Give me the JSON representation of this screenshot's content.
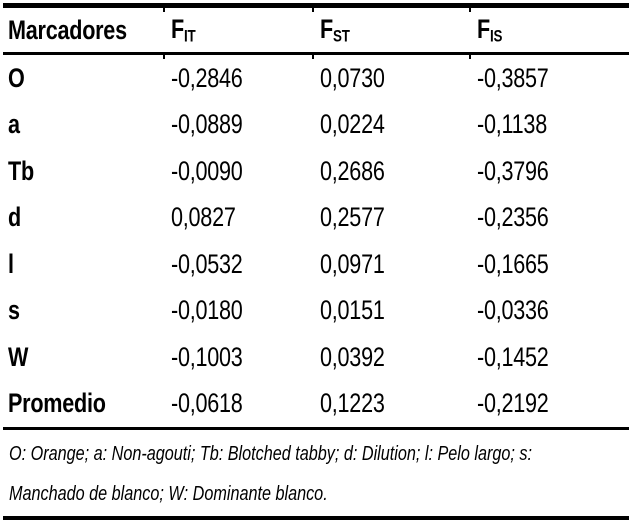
{
  "table": {
    "headers": {
      "col1": "Marcadores",
      "col2": {
        "base": "F",
        "sub": "IT"
      },
      "col3": {
        "base": "F",
        "sub": "ST"
      },
      "col4": {
        "base": "F",
        "sub": "IS"
      }
    },
    "rows": [
      {
        "label": "O",
        "fit": "-0,2846",
        "fst": "0,0730",
        "fis": "-0,3857"
      },
      {
        "label": "a",
        "fit": "-0,0889",
        "fst": "0,0224",
        "fis": "-0,1138"
      },
      {
        "label": "Tb",
        "fit": "-0,0090",
        "fst": "0,2686",
        "fis": "-0,3796"
      },
      {
        "label": "d",
        "fit": "0,0827",
        "fst": "0,2577",
        "fis": "-0,2356"
      },
      {
        "label": "l",
        "fit": "-0,0532",
        "fst": "0,0971",
        "fis": "-0,1665"
      },
      {
        "label": "s",
        "fit": "-0,0180",
        "fst": "0,0151",
        "fis": "-0,0336"
      },
      {
        "label": "W",
        "fit": "-0,1003",
        "fst": "0,0392",
        "fis": "-0,1452"
      },
      {
        "label": "Promedio",
        "fit": "-0,0618",
        "fst": "0,1223",
        "fis": "-0,2192"
      }
    ],
    "colors": {
      "text": "#000000",
      "background": "#ffffff",
      "rule": "#000000"
    }
  },
  "footnote": {
    "line1": "O: Orange; a: Non-agouti; Tb: Blotched tabby; d: Dilution; l: Pelo largo; s:",
    "line2": "Manchado de blanco; W: Dominante blanco."
  }
}
